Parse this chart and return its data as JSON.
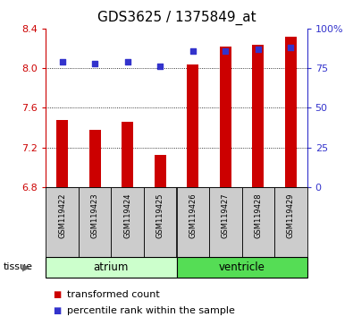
{
  "title": "GDS3625 / 1375849_at",
  "samples": [
    "GSM119422",
    "GSM119423",
    "GSM119424",
    "GSM119425",
    "GSM119426",
    "GSM119427",
    "GSM119428",
    "GSM119429"
  ],
  "red_values": [
    7.48,
    7.38,
    7.46,
    7.12,
    8.04,
    8.22,
    8.24,
    8.32
  ],
  "blue_values_pct": [
    79,
    78,
    79,
    76,
    86,
    86,
    87,
    88
  ],
  "ylim_left": [
    6.8,
    8.4
  ],
  "ylim_right": [
    0,
    100
  ],
  "yticks_left": [
    6.8,
    7.2,
    7.6,
    8.0,
    8.4
  ],
  "yticks_right": [
    0,
    25,
    50,
    75,
    100
  ],
  "ytick_labels_right": [
    "0",
    "25",
    "50",
    "75",
    "100%"
  ],
  "bar_bottom": 6.8,
  "groups": [
    {
      "label": "atrium",
      "start": 0,
      "end": 4,
      "color": "#ccffcc"
    },
    {
      "label": "ventricle",
      "start": 4,
      "end": 8,
      "color": "#55dd55"
    }
  ],
  "red_color": "#cc0000",
  "blue_color": "#3333cc",
  "sample_bg_color": "#cccccc",
  "title_fontsize": 11,
  "tick_fontsize": 8,
  "legend_fontsize": 8,
  "bar_width": 0.35
}
